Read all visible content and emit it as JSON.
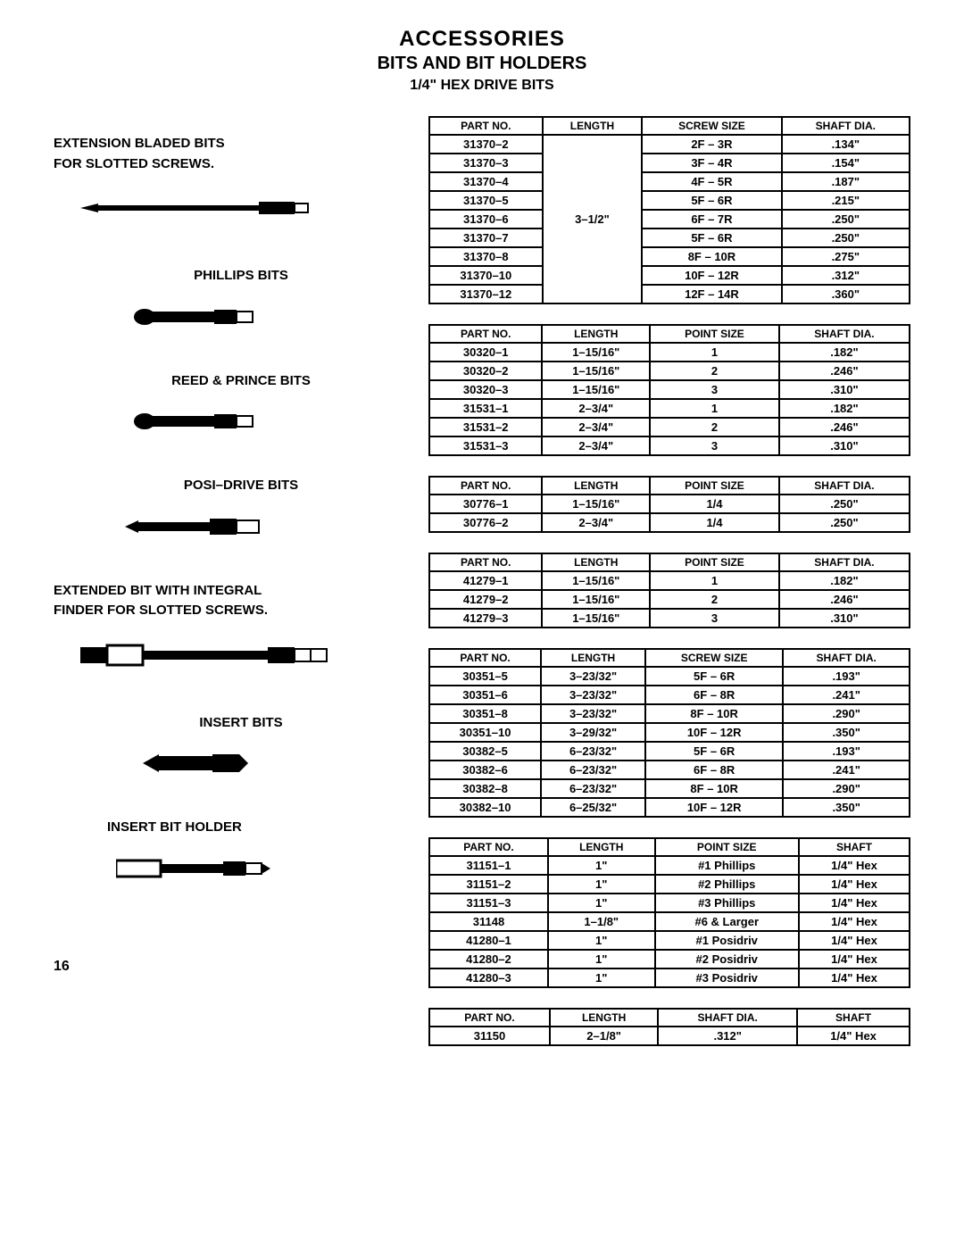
{
  "header": {
    "title1": "ACCESSORIES",
    "title2": "BITS AND BIT HOLDERS",
    "title3": "1/4\" HEX DRIVE BITS"
  },
  "left": {
    "s1": "EXTENSION BLADED BITS\nFOR SLOTTED SCREWS.",
    "s2": "PHILLIPS BITS",
    "s3": "REED & PRINCE BITS",
    "s4": "POSI–DRIVE BITS",
    "s5": "EXTENDED BIT WITH INTEGRAL\nFINDER FOR SLOTTED SCREWS.",
    "s6": "INSERT BITS",
    "s7": "INSERT BIT HOLDER"
  },
  "tables": {
    "t1": {
      "headers": [
        "PART NO.",
        "LENGTH",
        "SCREW SIZE",
        "SHAFT DIA."
      ],
      "merged_len": "3–1/2\"",
      "rows": [
        [
          "31370–2",
          "2F – 3R",
          ".134\""
        ],
        [
          "31370–3",
          "3F – 4R",
          ".154\""
        ],
        [
          "31370–4",
          "4F – 5R",
          ".187\""
        ],
        [
          "31370–5",
          "5F – 6R",
          ".215\""
        ],
        [
          "31370–6",
          "6F – 7R",
          ".250\""
        ],
        [
          "31370–7",
          "5F – 6R",
          ".250\""
        ],
        [
          "31370–8",
          "8F – 10R",
          ".275\""
        ],
        [
          "31370–10",
          "10F – 12R",
          ".312\""
        ],
        [
          "31370–12",
          "12F – 14R",
          ".360\""
        ]
      ]
    },
    "t2": {
      "headers": [
        "PART NO.",
        "LENGTH",
        "POINT SIZE",
        "SHAFT DIA."
      ],
      "rows": [
        [
          "30320–1",
          "1–15/16\"",
          "1",
          ".182\""
        ],
        [
          "30320–2",
          "1–15/16\"",
          "2",
          ".246\""
        ],
        [
          "30320–3",
          "1–15/16\"",
          "3",
          ".310\""
        ],
        [
          "31531–1",
          "2–3/4\"",
          "1",
          ".182\""
        ],
        [
          "31531–2",
          "2–3/4\"",
          "2",
          ".246\""
        ],
        [
          "31531–3",
          "2–3/4\"",
          "3",
          ".310\""
        ]
      ]
    },
    "t3": {
      "headers": [
        "PART NO.",
        "LENGTH",
        "POINT SIZE",
        "SHAFT DIA."
      ],
      "rows": [
        [
          "30776–1",
          "1–15/16\"",
          "1/4",
          ".250\""
        ],
        [
          "30776–2",
          "2–3/4\"",
          "1/4",
          ".250\""
        ]
      ]
    },
    "t4": {
      "headers": [
        "PART NO.",
        "LENGTH",
        "POINT SIZE",
        "SHAFT DIA."
      ],
      "rows": [
        [
          "41279–1",
          "1–15/16\"",
          "1",
          ".182\""
        ],
        [
          "41279–2",
          "1–15/16\"",
          "2",
          ".246\""
        ],
        [
          "41279–3",
          "1–15/16\"",
          "3",
          ".310\""
        ]
      ]
    },
    "t5": {
      "headers": [
        "PART NO.",
        "LENGTH",
        "SCREW SIZE",
        "SHAFT DIA."
      ],
      "rows": [
        [
          "30351–5",
          "3–23/32\"",
          "5F – 6R",
          ".193\""
        ],
        [
          "30351–6",
          "3–23/32\"",
          "6F – 8R",
          ".241\""
        ],
        [
          "30351–8",
          "3–23/32\"",
          "8F – 10R",
          ".290\""
        ],
        [
          "30351–10",
          "3–29/32\"",
          "10F – 12R",
          ".350\""
        ],
        [
          "30382–5",
          "6–23/32\"",
          "5F – 6R",
          ".193\""
        ],
        [
          "30382–6",
          "6–23/32\"",
          "6F – 8R",
          ".241\""
        ],
        [
          "30382–8",
          "6–23/32\"",
          "8F – 10R",
          ".290\""
        ],
        [
          "30382–10",
          "6–25/32\"",
          "10F – 12R",
          ".350\""
        ]
      ]
    },
    "t6": {
      "headers": [
        "PART NO.",
        "LENGTH",
        "POINT SIZE",
        "SHAFT"
      ],
      "rows": [
        [
          "31151–1",
          "1\"",
          "#1 Phillips",
          "1/4\" Hex"
        ],
        [
          "31151–2",
          "1\"",
          "#2 Phillips",
          "1/4\" Hex"
        ],
        [
          "31151–3",
          "1\"",
          "#3 Phillips",
          "1/4\" Hex"
        ],
        [
          "31148",
          "1–1/8\"",
          "#6 & Larger",
          "1/4\" Hex"
        ],
        [
          "41280–1",
          "1\"",
          "#1 Posidriv",
          "1/4\" Hex"
        ],
        [
          "41280–2",
          "1\"",
          "#2 Posidriv",
          "1/4\" Hex"
        ],
        [
          "41280–3",
          "1\"",
          "#3 Posidriv",
          "1/4\" Hex"
        ]
      ]
    },
    "t7": {
      "headers": [
        "PART NO.",
        "LENGTH",
        "SHAFT DIA.",
        "SHAFT"
      ],
      "rows": [
        [
          "31150",
          "2–1/8\"",
          ".312\"",
          "1/4\" Hex"
        ]
      ]
    }
  },
  "page_number": "16"
}
